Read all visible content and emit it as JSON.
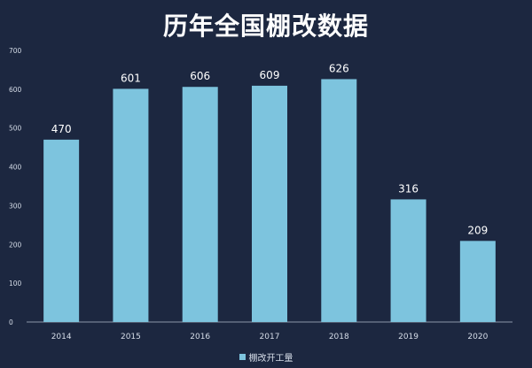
{
  "chart_data": {
    "type": "bar",
    "title": "历年全国棚改数据",
    "categories": [
      "2014",
      "2015",
      "2016",
      "2017",
      "2018",
      "2019",
      "2020"
    ],
    "series": [
      {
        "name": "棚改开工量",
        "values": [
          470,
          601,
          606,
          609,
          626,
          316,
          209
        ]
      }
    ],
    "y_ticks": [
      "0",
      "100",
      "200",
      "300",
      "400",
      "500",
      "600",
      "700"
    ],
    "ylim": [
      0,
      700
    ],
    "xlabel": "",
    "ylabel": "",
    "grid": false,
    "legend_position": "bottom",
    "data_labels": true
  },
  "colors": {
    "background": "#1c2740",
    "bar": "#7dc4de",
    "axis": "#8c97a8",
    "text": "#ffffff",
    "tick_text": "#d6dde8"
  }
}
